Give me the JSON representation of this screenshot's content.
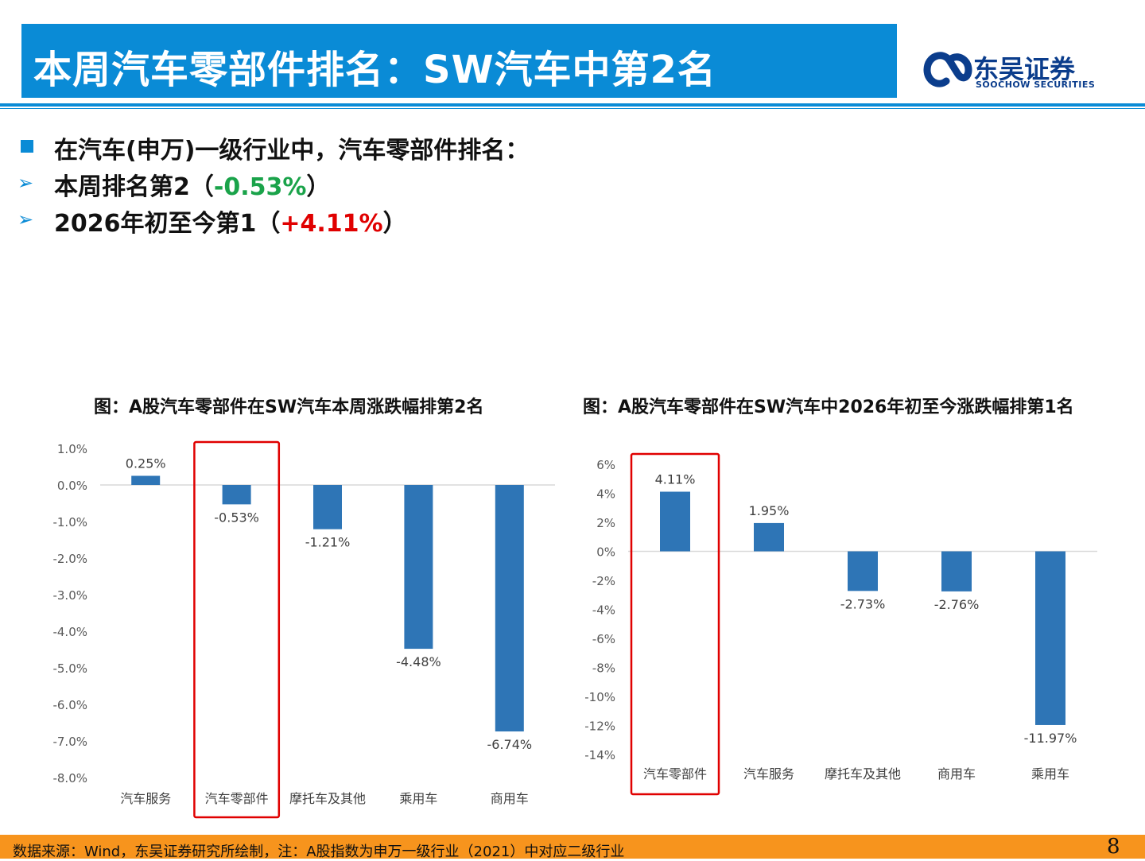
{
  "header": {
    "title": "本周汽车零部件排名：SW汽车中第2名",
    "logo_cn": "东吴证券",
    "logo_en": "SOOCHOW SECURITIES",
    "colors": {
      "title_bar": "#0a8bd6",
      "logo": "#0b3d8c"
    }
  },
  "bullets": {
    "b1": "在汽车(申万)一级行业中，汽车零部件排名：",
    "b2_prefix": "本周排名第2（",
    "b2_value": "-0.53%",
    "b2_suffix": "）",
    "b3_prefix": "2026年初至今第1（",
    "b3_value": "+4.11%",
    "b3_suffix": "）",
    "colors": {
      "negative": "#1aa34a",
      "positive": "#e00000"
    }
  },
  "chart_data": [
    {
      "type": "bar",
      "title": "图：A股汽车零部件在SW汽车本周涨跌幅排第2名",
      "categories": [
        "汽车服务",
        "汽车零部件",
        "摩托车及其他",
        "乘用车",
        "商用车"
      ],
      "values": [
        0.25,
        -0.53,
        -1.21,
        -4.48,
        -6.74
      ],
      "value_labels": [
        "0.25%",
        "-0.53%",
        "-1.21%",
        "-4.48%",
        "-6.74%"
      ],
      "yticks": [
        "1.0%",
        "0.0%",
        "-1.0%",
        "-2.0%",
        "-3.0%",
        "-4.0%",
        "-5.0%",
        "-6.0%",
        "-7.0%",
        "-8.0%"
      ],
      "ylim": [
        -8,
        1
      ],
      "highlight_category": "汽车零部件",
      "bar_color": "#2e75b6",
      "highlight_color": "#e00000"
    },
    {
      "type": "bar",
      "title": "图：A股汽车零部件在SW汽车中2026年初至今涨跌幅排第1名",
      "categories": [
        "汽车零部件",
        "汽车服务",
        "摩托车及其他",
        "商用车",
        "乘用车"
      ],
      "values": [
        4.11,
        1.95,
        -2.73,
        -2.76,
        -11.97
      ],
      "value_labels": [
        "4.11%",
        "1.95%",
        "-2.73%",
        "-2.76%",
        "-11.97%"
      ],
      "yticks": [
        "6%",
        "4%",
        "2%",
        "0%",
        "-2%",
        "-4%",
        "-6%",
        "-8%",
        "-10%",
        "-12%",
        "-14%"
      ],
      "ylim": [
        -14,
        6
      ],
      "highlight_category": "汽车零部件",
      "bar_color": "#2e75b6",
      "highlight_color": "#e00000"
    }
  ],
  "footer": {
    "source": "数据来源：Wind，东吴证券研究所绘制，注：A股指数为申万一级行业（2021）中对应二级行业",
    "page": "8",
    "color": "#f7941d"
  }
}
